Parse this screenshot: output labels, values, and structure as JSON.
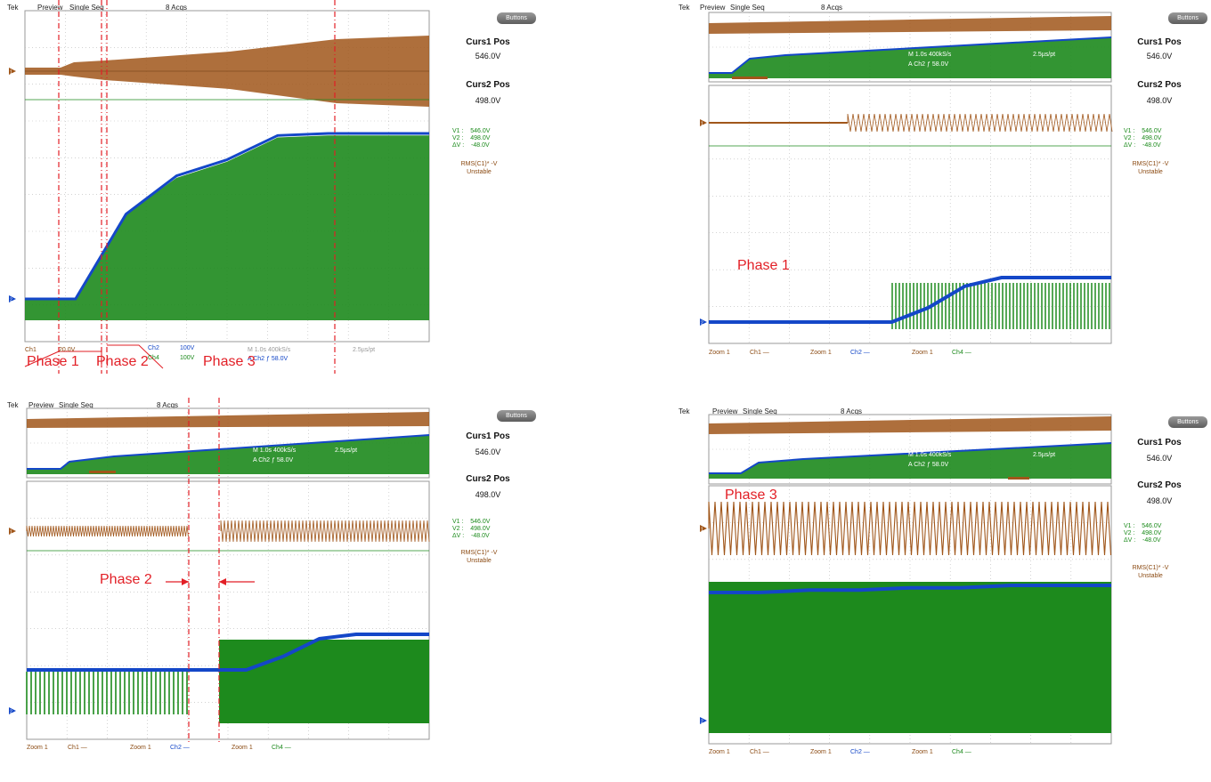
{
  "colors": {
    "ch1": "#a0561a",
    "ch2": "#1447c8",
    "ch4": "#1d8a1d",
    "annotation": "#e21f26",
    "grid": "#b8b8b8"
  },
  "toolbar": {
    "tek": "Tek",
    "preview": "Preview",
    "single_seq": "Single Seq",
    "acqs": "8 Acqs",
    "buttons_label": "Buttons"
  },
  "right_panel": {
    "curs1_label": "Curs1 Pos",
    "curs1_value": "546.0V",
    "curs2_label": "Curs2 Pos",
    "curs2_value": "498.0V",
    "v1": "V1 :    546.0V",
    "v2": "V2 :    498.0V",
    "dv": "ΔV :    -48.0V",
    "rms_label": "RMS(C1)*      -V",
    "rms_status": "Unstable"
  },
  "panel0_bottom": {
    "ch1": "Ch1",
    "ch1_scale": "20.0V",
    "ch2": "Ch2",
    "ch2_scale": "100V",
    "ch4": "Ch4",
    "ch4_scale": "100V",
    "timebase": "M 1.0s 400kS/s",
    "pts": "2.5µs/pt",
    "trigger": "A  Ch2  ƒ  58.0V"
  },
  "zoom_info": {
    "timebase": "M 1.0s 400kS/s",
    "pts": "2.5µs/pt",
    "trigger": "A  Ch2  ƒ  58.0V",
    "zoom": "Zoom 1",
    "ch1": "Ch1 —",
    "ch2": "Ch2 —",
    "ch4": "Ch4 —"
  },
  "phase_labels": {
    "panel0": [
      "Phase 1",
      "Phase 2",
      "Phase 3"
    ],
    "panel1": "Phase 1",
    "panel2": "Phase 2",
    "panel3": "Phase 3"
  },
  "chart_data": [
    {
      "type": "line",
      "title": "",
      "xlabel": "",
      "ylabel": "",
      "series": [
        {
          "name": "Ch1",
          "values": [
            5,
            5,
            8,
            12,
            18,
            24,
            28,
            28,
            28
          ]
        },
        {
          "name": "Ch2",
          "values": [
            0,
            0,
            210,
            305,
            345,
            405,
            410,
            410,
            410
          ]
        },
        {
          "name": "Ch4",
          "values": [
            0,
            0,
            210,
            300,
            340,
            400,
            405,
            405,
            405
          ]
        }
      ],
      "phase_markers": [
        "Phase 1",
        "Phase 2",
        "Phase 3"
      ]
    },
    {
      "type": "line",
      "title": "",
      "xlabel": "",
      "ylabel": "",
      "series": [
        {
          "name": "Ch2",
          "values": [
            0,
            0,
            0,
            0,
            0,
            0,
            20,
            50,
            62,
            62,
            62,
            62
          ]
        }
      ]
    },
    {
      "type": "line",
      "title": "",
      "xlabel": "",
      "ylabel": "",
      "series": [
        {
          "name": "Ch2",
          "values": [
            0,
            0,
            0,
            0,
            0,
            0,
            0,
            15,
            35,
            40,
            40,
            40
          ]
        }
      ]
    },
    {
      "type": "line",
      "title": "",
      "xlabel": "",
      "ylabel": "",
      "series": [
        {
          "name": "Ch2",
          "values": [
            0,
            0,
            1,
            1,
            2,
            2,
            3,
            3,
            3
          ]
        }
      ]
    }
  ]
}
